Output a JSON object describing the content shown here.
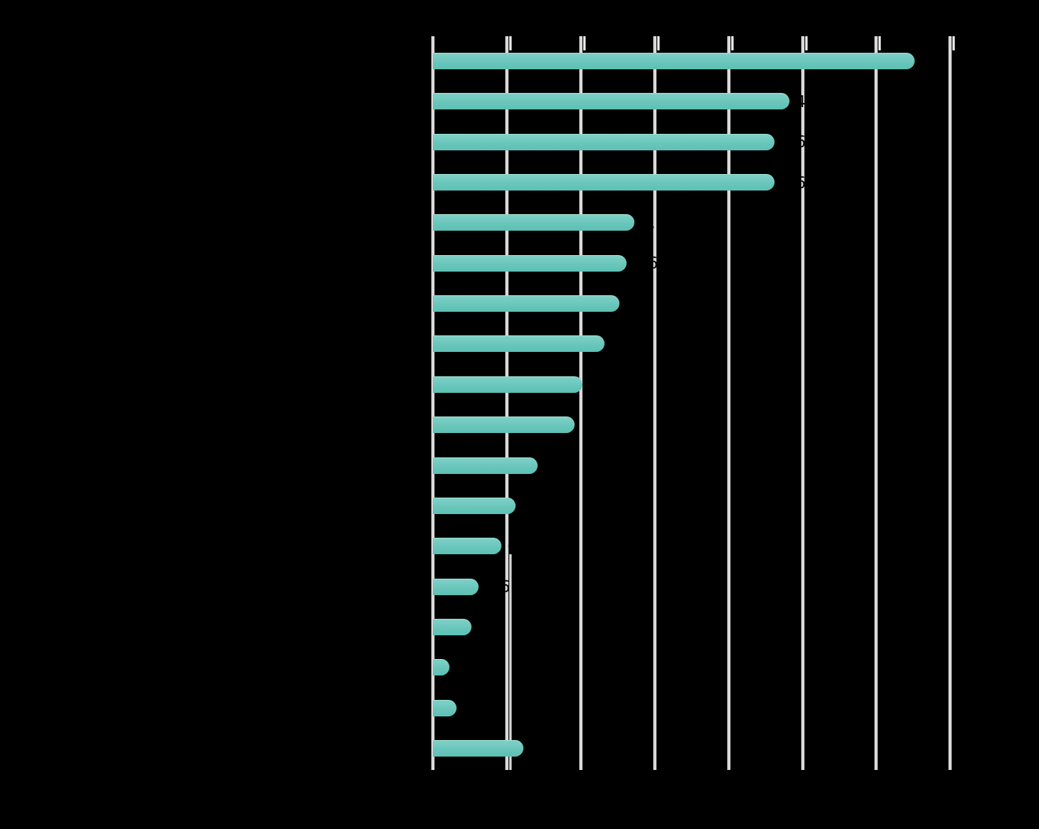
{
  "page": {
    "background_color": "#000000",
    "title": ""
  },
  "chart_data": {
    "type": "bar",
    "orientation": "horizontal",
    "title": "",
    "xlabel": "",
    "ylabel": "",
    "xlim": [
      0,
      7
    ],
    "x_ticks": [
      "0",
      "1",
      "2",
      "3",
      "4",
      "5",
      "6",
      "7"
    ],
    "grid": "vertical gridlines at each integer x tick",
    "legend_position": "none",
    "bar_color": "#6cc7bc",
    "grid_color": "#d8d8d8",
    "text_color": "#000000",
    "categories": [
      "",
      "",
      "",
      "",
      "",
      "",
      "",
      "",
      "",
      "",
      "",
      "",
      "",
      "",
      "",
      "",
      "",
      ""
    ],
    "series": [
      {
        "name": "values",
        "values": [
          6.5,
          4.8,
          4.6,
          4.6,
          2.7,
          2.6,
          2.5,
          2.3,
          2.0,
          1.9,
          1.4,
          1.1,
          0.9,
          0.6,
          0.5,
          0.2,
          0.3,
          1.2
        ]
      }
    ],
    "value_labels": [
      "6.5",
      "4.8",
      "4.6",
      "4.6",
      "2.7",
      "2.6",
      "2.5",
      "2.3",
      "2.0",
      "1.9",
      "1.4",
      "1.1",
      "0.9",
      "0.6",
      "0.5",
      "0.2",
      "0.3",
      "1.2"
    ]
  }
}
